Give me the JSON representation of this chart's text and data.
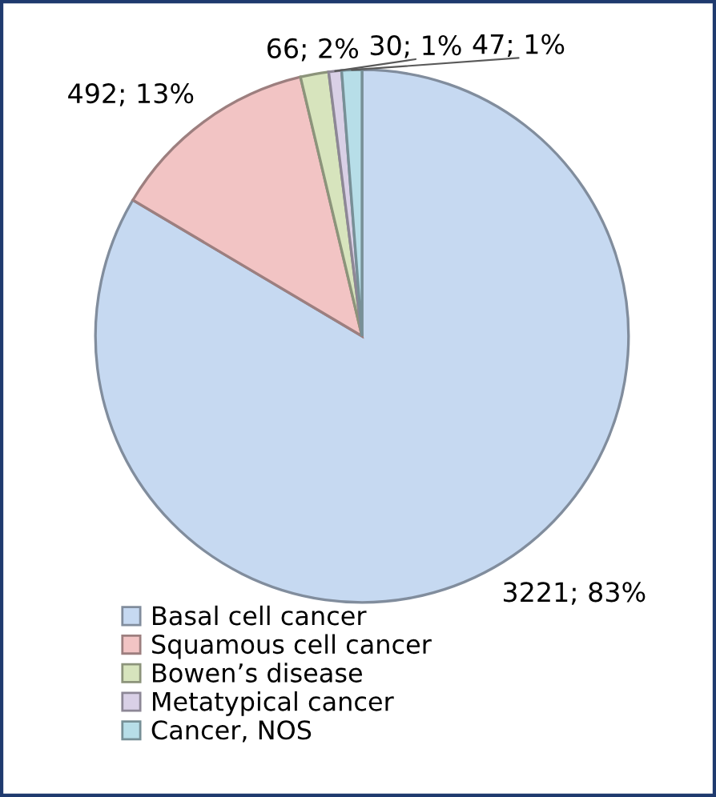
{
  "chart_data": {
    "type": "pie",
    "categories": [
      "Basal cell cancer",
      "Squamous cell cancer",
      "Bowen’s disease",
      "Metatypical cancer",
      "Cancer, NOS"
    ],
    "values": [
      3221,
      492,
      66,
      30,
      47
    ],
    "colors": [
      "#c6d9f1",
      "#f2c4c4",
      "#d7e4bd",
      "#d9d0e6",
      "#b7dee8"
    ],
    "value_labels": [
      "3221; 83%",
      "492; 13%",
      "66; 2%",
      "30; 1%",
      "47; 1%"
    ],
    "legend": "bottom"
  }
}
